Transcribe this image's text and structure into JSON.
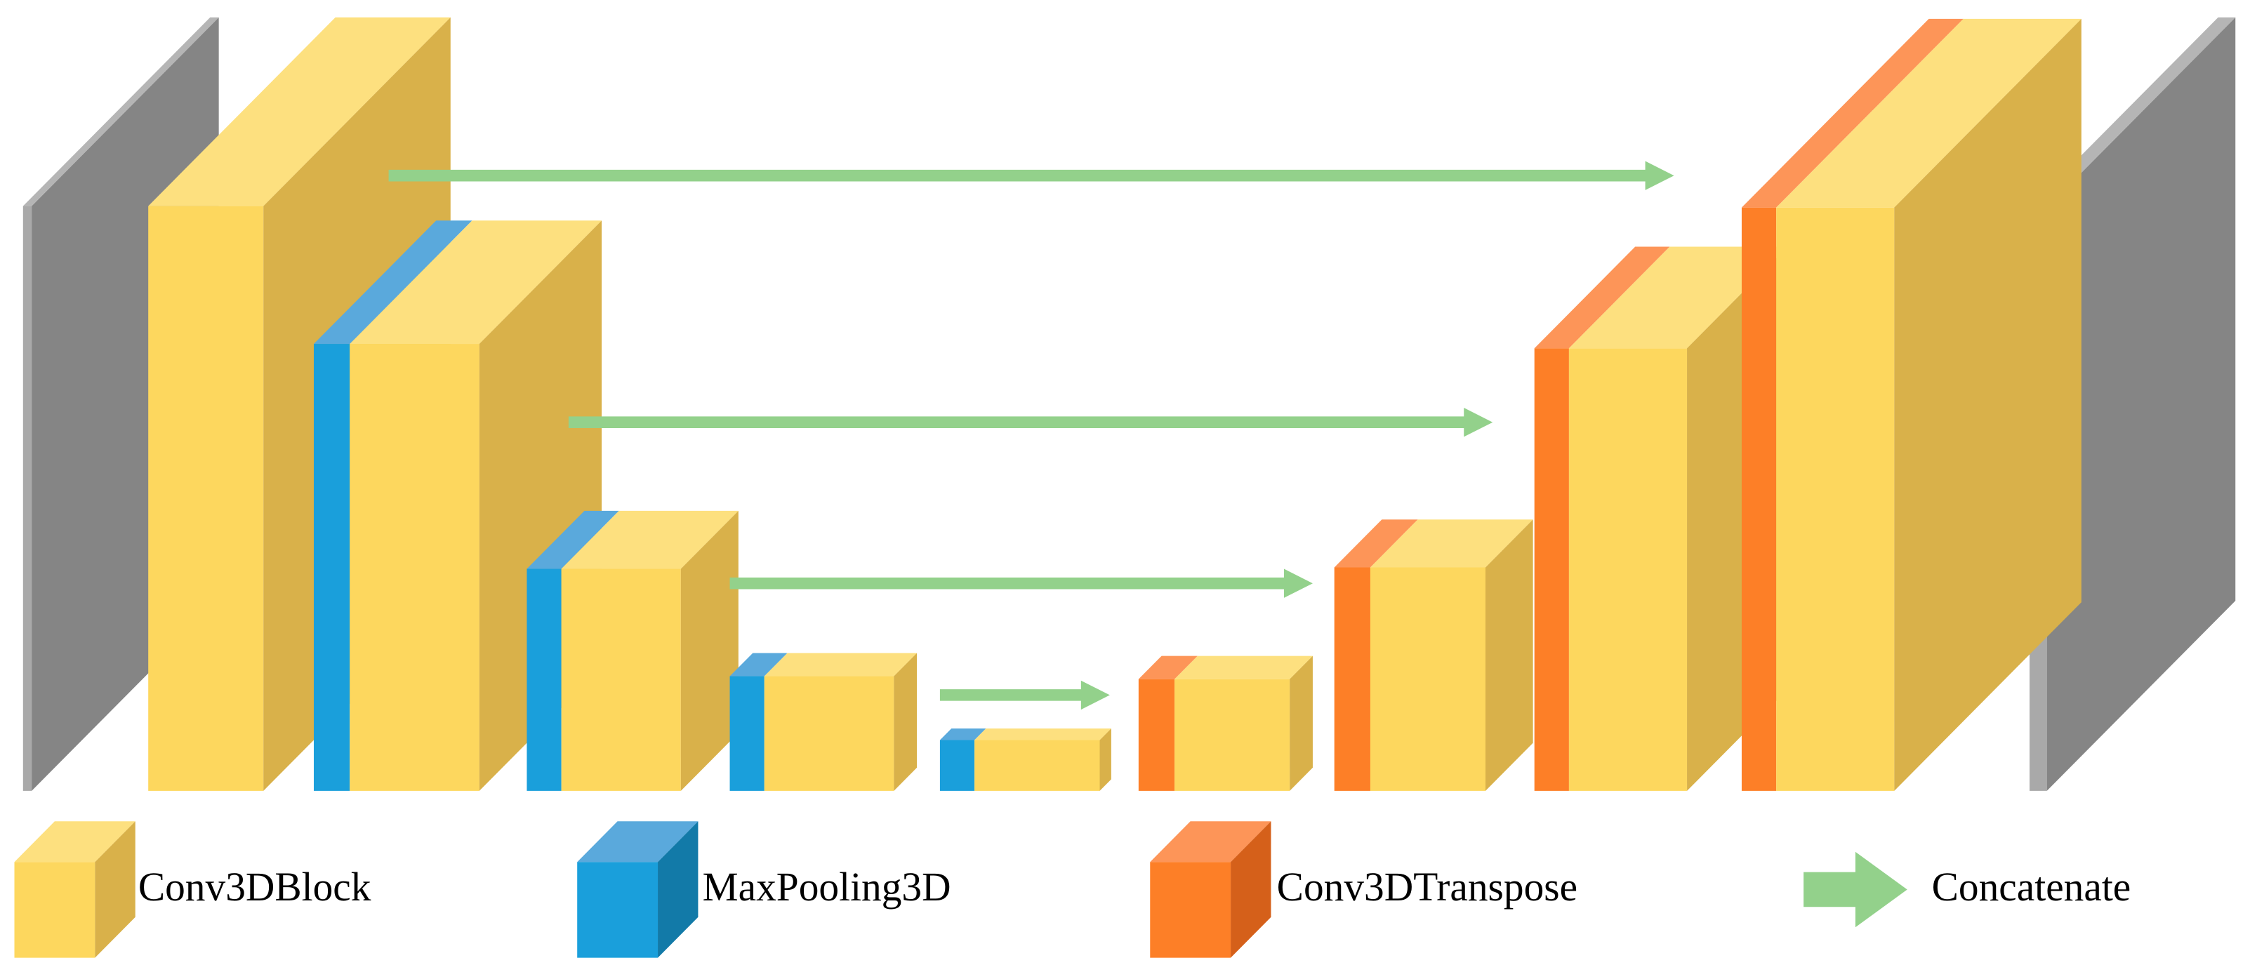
{
  "legend": [
    {
      "label": "Conv3DBlock"
    },
    {
      "label": "MaxPooling3D"
    },
    {
      "label": "Conv3DTranspose"
    },
    {
      "label": "Concatenate"
    }
  ]
}
